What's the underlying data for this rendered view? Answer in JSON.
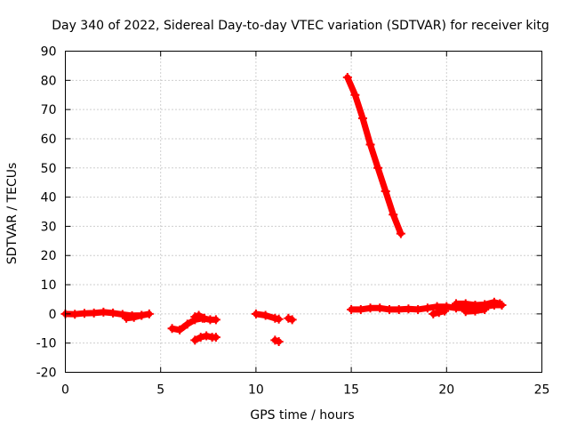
{
  "chart_data": {
    "type": "scatter",
    "title": "Day 340 of 2022, Sidereal Day-to-day VTEC variation (SDTVAR) for receiver kitg",
    "xlabel": "GPS time / hours",
    "ylabel": "SDTVAR / TECUs",
    "xlim": [
      0,
      25
    ],
    "ylim": [
      -20,
      90
    ],
    "xticks": [
      0,
      5,
      10,
      15,
      20,
      25
    ],
    "yticks": [
      -20,
      -10,
      0,
      10,
      20,
      30,
      40,
      50,
      60,
      70,
      80,
      90
    ],
    "grid": true,
    "marker_color": "#ff0000",
    "series": [
      {
        "name": "SDTVAR",
        "segments": [
          [
            [
              0.0,
              0.0
            ],
            [
              0.5,
              -0.1
            ],
            [
              1.0,
              0.2
            ],
            [
              1.5,
              0.3
            ],
            [
              2.0,
              0.6
            ],
            [
              2.5,
              0.3
            ],
            [
              3.0,
              -0.2
            ],
            [
              3.5,
              -0.6
            ],
            [
              4.0,
              -0.5
            ],
            [
              4.4,
              0.0
            ]
          ],
          [
            [
              3.2,
              -1.5
            ],
            [
              3.6,
              -1.2
            ],
            [
              4.0,
              -0.5
            ]
          ],
          [
            [
              5.6,
              -5.0
            ],
            [
              6.0,
              -5.5
            ],
            [
              6.4,
              -3.5
            ],
            [
              6.8,
              -2.0
            ],
            [
              7.2,
              -1.5
            ],
            [
              7.6,
              -2.0
            ],
            [
              7.9,
              -2.0
            ]
          ],
          [
            [
              6.8,
              -1.0
            ],
            [
              7.0,
              -0.5
            ],
            [
              7.3,
              -1.5
            ]
          ],
          [
            [
              6.8,
              -9.0
            ],
            [
              7.1,
              -8.0
            ],
            [
              7.4,
              -7.5
            ],
            [
              7.7,
              -8.0
            ],
            [
              7.9,
              -8.0
            ]
          ],
          [
            [
              10.0,
              0.0
            ],
            [
              10.5,
              -0.5
            ],
            [
              11.0,
              -1.5
            ],
            [
              11.2,
              -1.8
            ]
          ],
          [
            [
              11.7,
              -1.5
            ],
            [
              11.9,
              -2.0
            ]
          ],
          [
            [
              11.0,
              -9.0
            ],
            [
              11.2,
              -9.5
            ]
          ],
          [
            [
              14.8,
              81.0
            ],
            [
              15.2,
              75.0
            ],
            [
              15.6,
              67.0
            ],
            [
              16.0,
              58.0
            ],
            [
              16.4,
              50.0
            ],
            [
              16.8,
              42.0
            ],
            [
              17.2,
              34.0
            ],
            [
              17.6,
              27.5
            ]
          ],
          [
            [
              15.0,
              1.5
            ],
            [
              15.5,
              1.5
            ],
            [
              16.0,
              2.0
            ],
            [
              16.5,
              2.0
            ],
            [
              17.0,
              1.5
            ],
            [
              17.5,
              1.5
            ],
            [
              18.0,
              1.7
            ],
            [
              18.5,
              1.5
            ],
            [
              19.0,
              2.0
            ],
            [
              19.5,
              2.5
            ],
            [
              20.0,
              2.5
            ],
            [
              20.5,
              2.0
            ],
            [
              21.0,
              2.0
            ],
            [
              21.5,
              1.8
            ],
            [
              22.0,
              2.5
            ],
            [
              22.5,
              3.0
            ],
            [
              22.9,
              3.0
            ]
          ],
          [
            [
              19.3,
              0.0
            ],
            [
              19.6,
              0.5
            ],
            [
              19.9,
              1.0
            ]
          ],
          [
            [
              20.5,
              3.5
            ],
            [
              21.0,
              3.5
            ],
            [
              21.5,
              3.0
            ],
            [
              22.0,
              3.2
            ],
            [
              22.5,
              4.0
            ],
            [
              22.8,
              3.5
            ]
          ],
          [
            [
              21.0,
              0.8
            ],
            [
              21.5,
              1.0
            ],
            [
              22.0,
              1.5
            ]
          ]
        ]
      }
    ]
  }
}
